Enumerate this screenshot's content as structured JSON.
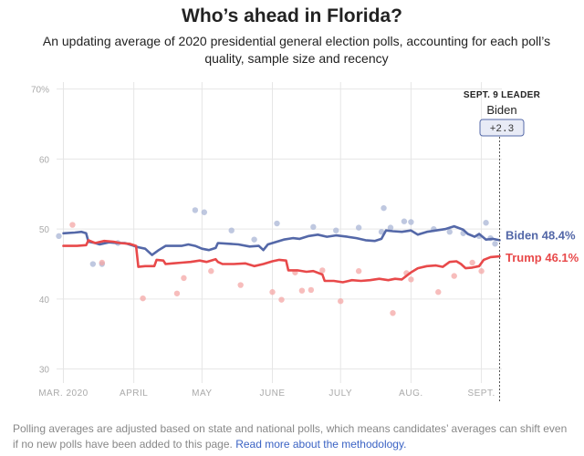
{
  "header": {
    "title": "Who’s ahead in Florida?",
    "subtitle": "An updating average of 2020 presidential general election polls, accounting for each poll’s quality, sample size and recency"
  },
  "leader_box": {
    "heading": "SEPT. 9 LEADER",
    "name": "Biden",
    "margin": "+2.3"
  },
  "footer": {
    "text": "Polling averages are adjusted based on state and national polls, which means candidates’ averages can shift even if no new polls have been added to this page.",
    "link": "Read more about the methodology."
  },
  "colors": {
    "biden": "#5468a8",
    "trump": "#e8494a",
    "grid": "#e8e8e8",
    "axis_text": "#aaaaaa"
  },
  "chart_data": {
    "type": "line",
    "x_unit": "days since Mar. 1, 2020",
    "xlim": [
      -3,
      193
    ],
    "ylim": [
      28,
      71
    ],
    "y_ticks": [
      {
        "value": 70,
        "label": "70%"
      },
      {
        "value": 60,
        "label": "60"
      },
      {
        "value": 50,
        "label": "50"
      },
      {
        "value": 40,
        "label": "40"
      },
      {
        "value": 30,
        "label": "30"
      }
    ],
    "x_ticks": [
      {
        "day": 0,
        "label": "MAR. 2020"
      },
      {
        "day": 31,
        "label": "APRIL"
      },
      {
        "day": 61,
        "label": "MAY"
      },
      {
        "day": 92,
        "label": "JUNE"
      },
      {
        "day": 122,
        "label": "JULY"
      },
      {
        "day": 153,
        "label": "AUG."
      },
      {
        "day": 184,
        "label": "SEPT."
      }
    ],
    "marker": {
      "day": 192
    },
    "series": [
      {
        "name": "Biden",
        "end_label": "Biden 48.4%",
        "color": "#5468a8",
        "points": [
          [
            0,
            49.4
          ],
          [
            5,
            49.5
          ],
          [
            8,
            49.6
          ],
          [
            10,
            49.4
          ],
          [
            11,
            48.2
          ],
          [
            14,
            48.0
          ],
          [
            16,
            47.8
          ],
          [
            20,
            48.1
          ],
          [
            24,
            48.0
          ],
          [
            27,
            48.0
          ],
          [
            30,
            47.7
          ],
          [
            33,
            47.4
          ],
          [
            36,
            47.2
          ],
          [
            39,
            46.3
          ],
          [
            42,
            47.0
          ],
          [
            45,
            47.6
          ],
          [
            48,
            47.6
          ],
          [
            52,
            47.6
          ],
          [
            55,
            47.8
          ],
          [
            58,
            47.6
          ],
          [
            61,
            47.2
          ],
          [
            64,
            47.0
          ],
          [
            67,
            47.3
          ],
          [
            68,
            48.0
          ],
          [
            73,
            47.9
          ],
          [
            77,
            47.8
          ],
          [
            82,
            47.5
          ],
          [
            86,
            47.6
          ],
          [
            88,
            47.0
          ],
          [
            90,
            47.8
          ],
          [
            93,
            48.1
          ],
          [
            97,
            48.5
          ],
          [
            101,
            48.7
          ],
          [
            104,
            48.6
          ],
          [
            108,
            49.0
          ],
          [
            112,
            49.2
          ],
          [
            116,
            48.9
          ],
          [
            120,
            49.1
          ],
          [
            125,
            48.9
          ],
          [
            129,
            48.7
          ],
          [
            133,
            48.4
          ],
          [
            137,
            48.3
          ],
          [
            140,
            48.6
          ],
          [
            142,
            49.8
          ],
          [
            145,
            49.7
          ],
          [
            149,
            49.6
          ],
          [
            153,
            49.8
          ],
          [
            156,
            49.2
          ],
          [
            160,
            49.6
          ],
          [
            164,
            49.8
          ],
          [
            168,
            50.0
          ],
          [
            172,
            50.4
          ],
          [
            176,
            49.9
          ],
          [
            178,
            49.3
          ],
          [
            181,
            48.9
          ],
          [
            183,
            49.3
          ],
          [
            186,
            48.5
          ],
          [
            189,
            48.6
          ],
          [
            192,
            48.4
          ]
        ]
      },
      {
        "name": "Trump",
        "end_label": "Trump 46.1%",
        "color": "#e8494a",
        "points": [
          [
            0,
            47.6
          ],
          [
            6,
            47.6
          ],
          [
            10,
            47.7
          ],
          [
            11,
            48.4
          ],
          [
            14,
            48.0
          ],
          [
            18,
            48.3
          ],
          [
            22,
            48.2
          ],
          [
            25,
            48.0
          ],
          [
            29,
            47.9
          ],
          [
            32,
            47.6
          ],
          [
            33,
            44.6
          ],
          [
            36,
            44.7
          ],
          [
            40,
            44.7
          ],
          [
            41,
            45.6
          ],
          [
            44,
            45.5
          ],
          [
            45,
            45.0
          ],
          [
            48,
            45.1
          ],
          [
            52,
            45.2
          ],
          [
            56,
            45.3
          ],
          [
            60,
            45.5
          ],
          [
            63,
            45.3
          ],
          [
            67,
            45.7
          ],
          [
            68,
            45.3
          ],
          [
            70,
            45.0
          ],
          [
            75,
            45.0
          ],
          [
            80,
            45.1
          ],
          [
            84,
            44.7
          ],
          [
            88,
            45.0
          ],
          [
            92,
            45.4
          ],
          [
            95,
            45.6
          ],
          [
            98,
            45.5
          ],
          [
            99,
            44.1
          ],
          [
            103,
            44.1
          ],
          [
            107,
            43.9
          ],
          [
            110,
            44.0
          ],
          [
            114,
            43.5
          ],
          [
            115,
            42.6
          ],
          [
            119,
            42.6
          ],
          [
            123,
            42.4
          ],
          [
            127,
            42.7
          ],
          [
            131,
            42.6
          ],
          [
            135,
            42.7
          ],
          [
            139,
            42.9
          ],
          [
            143,
            42.7
          ],
          [
            146,
            42.9
          ],
          [
            149,
            42.8
          ],
          [
            153,
            43.8
          ],
          [
            156,
            44.4
          ],
          [
            160,
            44.7
          ],
          [
            164,
            44.8
          ],
          [
            167,
            44.6
          ],
          [
            170,
            45.3
          ],
          [
            173,
            45.4
          ],
          [
            175,
            45.0
          ],
          [
            177,
            44.4
          ],
          [
            180,
            44.5
          ],
          [
            183,
            44.7
          ],
          [
            185,
            45.6
          ],
          [
            188,
            46.0
          ],
          [
            192,
            46.1
          ]
        ]
      }
    ],
    "poll_dots": {
      "biden": [
        [
          -2,
          49
        ],
        [
          13,
          45
        ],
        [
          17,
          45
        ],
        [
          24,
          48
        ],
        [
          58,
          52.7
        ],
        [
          62,
          52.4
        ],
        [
          74,
          49.8
        ],
        [
          84,
          48.5
        ],
        [
          94,
          50.8
        ],
        [
          110,
          50.3
        ],
        [
          120,
          49.8
        ],
        [
          130,
          50.2
        ],
        [
          140,
          49.6
        ],
        [
          141,
          53.0
        ],
        [
          144,
          50.2
        ],
        [
          150,
          51.1
        ],
        [
          153,
          51.0
        ],
        [
          163,
          50.0
        ],
        [
          170,
          49.6
        ],
        [
          176,
          49.4
        ],
        [
          183,
          49.0
        ],
        [
          186,
          50.9
        ],
        [
          188,
          48.7
        ],
        [
          190,
          47.9
        ]
      ],
      "trump": [
        [
          4,
          50.6
        ],
        [
          17,
          45.2
        ],
        [
          35,
          40.1
        ],
        [
          50,
          40.8
        ],
        [
          53,
          43.0
        ],
        [
          65,
          44.0
        ],
        [
          78,
          42.0
        ],
        [
          92,
          41.0
        ],
        [
          96,
          39.9
        ],
        [
          102,
          43.8
        ],
        [
          105,
          41.2
        ],
        [
          109,
          41.3
        ],
        [
          114,
          44.1
        ],
        [
          122,
          39.7
        ],
        [
          130,
          44.0
        ],
        [
          145,
          38.0
        ],
        [
          151,
          43.7
        ],
        [
          153,
          42.8
        ],
        [
          165,
          41.0
        ],
        [
          172,
          43.3
        ],
        [
          180,
          45.2
        ],
        [
          184,
          44.0
        ]
      ]
    }
  }
}
